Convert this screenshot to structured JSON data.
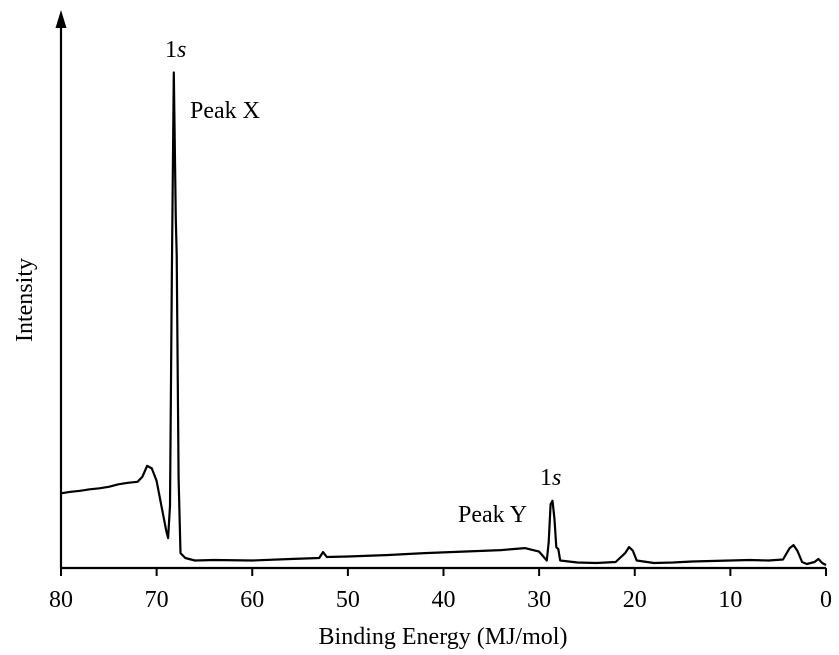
{
  "chart_data": {
    "type": "line",
    "title": "",
    "xlabel": "Binding Energy (MJ/mol)",
    "ylabel": "Intensity",
    "xlim": [
      80,
      0
    ],
    "x_reversed": true,
    "ylim": [
      0,
      100
    ],
    "grid": false,
    "legend": "none",
    "x_ticks": [
      80,
      70,
      60,
      50,
      40,
      30,
      20,
      10,
      0
    ],
    "line_color": "#000000",
    "series": [
      {
        "points": [
          [
            80.0,
            15.0
          ],
          [
            79.0,
            15.3
          ],
          [
            78.0,
            15.5
          ],
          [
            77.0,
            15.8
          ],
          [
            76.0,
            16.0
          ],
          [
            75.0,
            16.3
          ],
          [
            74.0,
            16.8
          ],
          [
            73.0,
            17.1
          ],
          [
            72.0,
            17.3
          ],
          [
            71.5,
            18.3
          ],
          [
            71.0,
            20.5
          ],
          [
            70.5,
            20.0
          ],
          [
            70.0,
            17.5
          ],
          [
            69.5,
            12.5
          ],
          [
            69.0,
            7.5
          ],
          [
            68.8,
            6.0
          ],
          [
            68.6,
            12.5
          ],
          [
            68.4,
            60.0
          ],
          [
            68.2,
            99.5
          ],
          [
            68.0,
            70.0
          ],
          [
            67.9,
            63.0
          ],
          [
            67.7,
            18.0
          ],
          [
            67.5,
            3.0
          ],
          [
            67.0,
            2.0
          ],
          [
            66.0,
            1.5
          ],
          [
            64.0,
            1.6
          ],
          [
            60.0,
            1.5
          ],
          [
            56.0,
            1.8
          ],
          [
            53.0,
            2.0
          ],
          [
            52.6,
            3.2
          ],
          [
            52.2,
            2.2
          ],
          [
            50.0,
            2.3
          ],
          [
            46.0,
            2.6
          ],
          [
            42.0,
            3.0
          ],
          [
            38.0,
            3.3
          ],
          [
            34.0,
            3.6
          ],
          [
            31.5,
            4.0
          ],
          [
            30.0,
            3.3
          ],
          [
            29.2,
            1.5
          ],
          [
            29.0,
            5.2
          ],
          [
            28.8,
            12.8
          ],
          [
            28.6,
            13.5
          ],
          [
            28.4,
            10.0
          ],
          [
            28.2,
            4.2
          ],
          [
            28.0,
            3.8
          ],
          [
            27.8,
            1.5
          ],
          [
            26.0,
            1.1
          ],
          [
            24.0,
            1.0
          ],
          [
            22.0,
            1.2
          ],
          [
            21.0,
            3.0
          ],
          [
            20.6,
            4.2
          ],
          [
            20.2,
            3.5
          ],
          [
            19.8,
            1.5
          ],
          [
            18.0,
            1.0
          ],
          [
            16.0,
            1.1
          ],
          [
            14.0,
            1.3
          ],
          [
            12.0,
            1.4
          ],
          [
            10.0,
            1.5
          ],
          [
            8.0,
            1.6
          ],
          [
            6.0,
            1.5
          ],
          [
            4.5,
            1.7
          ],
          [
            3.8,
            4.0
          ],
          [
            3.4,
            4.6
          ],
          [
            3.0,
            3.5
          ],
          [
            2.5,
            1.2
          ],
          [
            2.0,
            0.8
          ],
          [
            1.2,
            1.2
          ],
          [
            0.8,
            1.8
          ],
          [
            0.4,
            1.0
          ],
          [
            0.0,
            0.6
          ]
        ]
      }
    ],
    "annotations": [
      {
        "id": "peak-x-orbital",
        "text": "1",
        "italic": "s",
        "x": 68.2,
        "y": 99.5
      },
      {
        "id": "peak-x-label",
        "text": "Peak X",
        "x": 68.2,
        "y": 99.5
      },
      {
        "id": "peak-y-orbital",
        "text": "1",
        "italic": "s",
        "x": 28.6,
        "y": 13.5
      },
      {
        "id": "peak-y-label",
        "text": "Peak Y",
        "x": 28.6,
        "y": 13.5
      }
    ]
  }
}
